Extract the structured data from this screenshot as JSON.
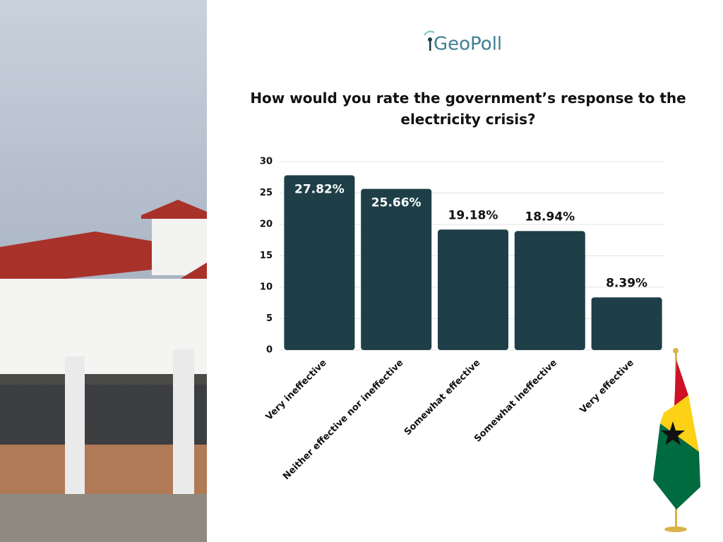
{
  "logo": "GeoPoll",
  "chart_data": {
    "type": "bar",
    "title": "How would you rate the government’s response to the electricity crisis?",
    "categories": [
      "Very ineffective",
      "Neither effective nor ineffective",
      "Somewhat effective",
      "Somewhat ineffective",
      "Very effective"
    ],
    "values": [
      27.82,
      25.66,
      19.18,
      18.94,
      8.39
    ],
    "value_labels": [
      "27.82%",
      "25.66%",
      "19.18%",
      "18.94%",
      "8.39%"
    ],
    "color": "#1e3f47",
    "ylim": [
      0,
      30
    ],
    "yticks": [
      0,
      5,
      10,
      15,
      20,
      25,
      30
    ],
    "grid": true
  }
}
